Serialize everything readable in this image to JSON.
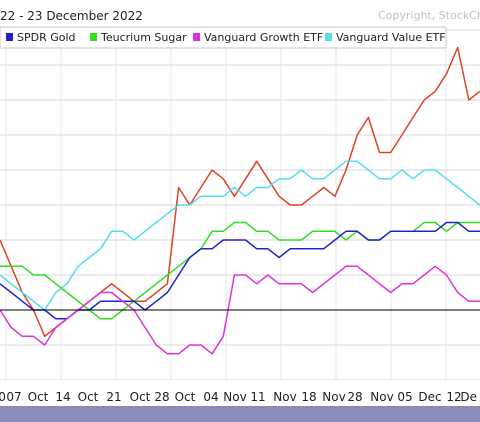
{
  "chart_data": {
    "type": "line",
    "title": "22 - 23 December 2022",
    "copyright": "Copyright, StockCh",
    "grid": true,
    "legend_position": "top",
    "x_tick_labels": [
      "0",
      "07",
      "Oct",
      "14",
      "Oct",
      "21",
      "Oct",
      "28",
      "Oct",
      "04",
      "Nov",
      "11",
      "Nov",
      "18",
      "Nov",
      "28",
      "Nov",
      "05",
      "Dec",
      "12",
      "De"
    ],
    "legend": [
      {
        "name": "SPDR Gold",
        "color": "#2222cc"
      },
      {
        "name": "Teucrium Sugar",
        "color": "#33dd22"
      },
      {
        "name": "Vanguard Growth ETF",
        "color": "#dd33dd"
      },
      {
        "name": "Vanguard Value ETF",
        "color": "#55ddee"
      }
    ],
    "ylim": [
      -8,
      32
    ],
    "baseline": 0,
    "series": [
      {
        "color": "#dd4422",
        "values": [
          8,
          5,
          2,
          0,
          -3,
          -2,
          -1,
          0,
          1,
          2,
          3,
          2,
          1,
          1,
          2,
          3,
          14,
          12,
          14,
          16,
          15,
          13,
          15,
          17,
          15,
          13,
          12,
          12,
          13,
          14,
          13,
          16,
          20,
          22,
          18,
          18,
          20,
          22,
          24,
          25,
          27,
          30,
          24,
          25
        ]
      },
      {
        "color": "#55ddee",
        "values": [
          4,
          3,
          2,
          1,
          0,
          2,
          3,
          5,
          6,
          7,
          9,
          9,
          8,
          9,
          10,
          11,
          12,
          12,
          13,
          13,
          13,
          14,
          13,
          14,
          14,
          15,
          15,
          16,
          15,
          15,
          16,
          17,
          17,
          16,
          15,
          15,
          16,
          15,
          16,
          16,
          15,
          14,
          13,
          12
        ]
      },
      {
        "color": "#33dd22",
        "values": [
          5,
          5,
          5,
          4,
          4,
          3,
          2,
          1,
          0,
          -1,
          -1,
          0,
          1,
          2,
          3,
          4,
          5,
          6,
          7,
          9,
          9,
          10,
          10,
          9,
          9,
          8,
          8,
          8,
          9,
          9,
          9,
          8,
          9,
          8,
          8,
          9,
          9,
          9,
          10,
          10,
          9,
          10,
          10,
          10
        ]
      },
      {
        "color": "#2222cc",
        "values": [
          3,
          2,
          1,
          0,
          0,
          -1,
          -1,
          0,
          0,
          1,
          1,
          1,
          1,
          0,
          1,
          2,
          4,
          6,
          7,
          7,
          8,
          8,
          8,
          7,
          7,
          6,
          7,
          7,
          7,
          7,
          8,
          9,
          9,
          8,
          8,
          9,
          9,
          9,
          9,
          9,
          10,
          10,
          9,
          9
        ]
      },
      {
        "color": "#dd33dd",
        "values": [
          0,
          -2,
          -3,
          -3,
          -4,
          -2,
          -1,
          0,
          1,
          2,
          2,
          1,
          0,
          -2,
          -4,
          -5,
          -5,
          -4,
          -4,
          -5,
          -3,
          4,
          4,
          3,
          4,
          3,
          3,
          3,
          2,
          3,
          4,
          5,
          5,
          4,
          3,
          2,
          3,
          3,
          4,
          5,
          4,
          2,
          1,
          1
        ]
      }
    ]
  }
}
